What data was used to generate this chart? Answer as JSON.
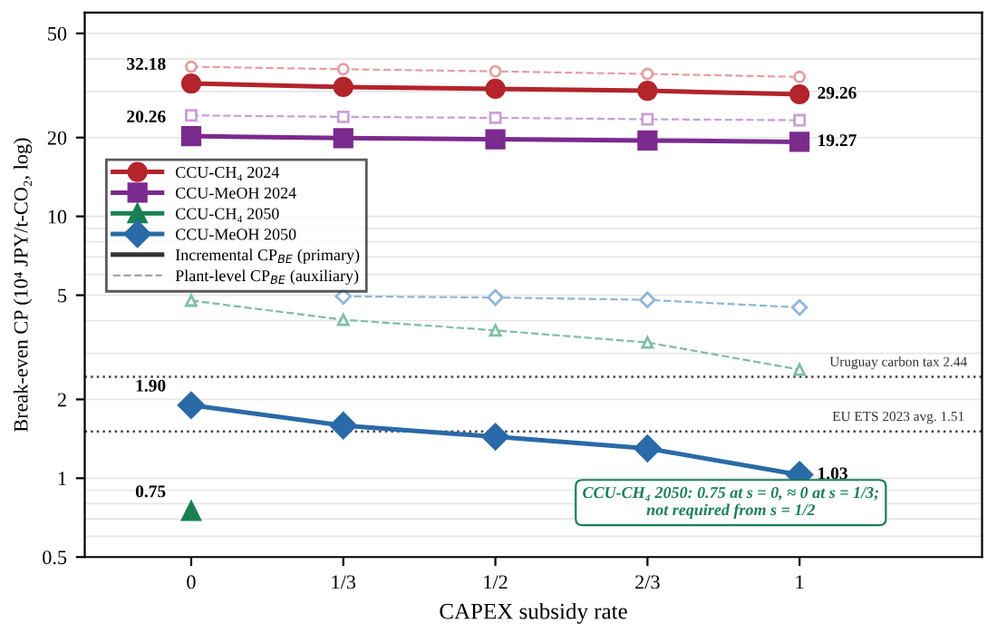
{
  "chart_data": {
    "type": "line",
    "xlabel": "CAPEX subsidy rate",
    "ylabel": "Break-even CP (10⁴ JPY/t-CO₂, log)",
    "categories": [
      "0",
      "1/3",
      "1/2",
      "2/3",
      "1"
    ],
    "log": "y",
    "ylim": [
      0.5,
      60
    ],
    "yticks": [
      0.5,
      1,
      2,
      5,
      10,
      20,
      50
    ],
    "grid": "y",
    "legend": "top left",
    "series": [
      {
        "name": "CCU-CH₄ 2024",
        "color": "#b3242b",
        "marker": "circle",
        "line_style": "solid",
        "values": [
          32.18,
          31.2,
          30.7,
          30.2,
          29.26
        ],
        "value_labels": [
          "32.18",
          null,
          null,
          null,
          "29.26"
        ]
      },
      {
        "name": "CCU-MeOH 2024",
        "color": "#7b2a8e",
        "marker": "square",
        "line_style": "solid",
        "values": [
          20.26,
          19.9,
          19.7,
          19.5,
          19.27
        ],
        "value_labels": [
          "20.26",
          null,
          null,
          null,
          "19.27"
        ]
      },
      {
        "name": "CCU-CH₄ 2050",
        "color": "#1b7f55",
        "marker": "triangle",
        "line_style": "solid",
        "values": [
          0.75,
          null,
          null,
          null,
          null
        ],
        "value_labels": [
          "0.75",
          null,
          null,
          null,
          null
        ]
      },
      {
        "name": "CCU-MeOH 2050",
        "color": "#2a6aa8",
        "marker": "diamond",
        "line_style": "solid",
        "values": [
          1.9,
          1.59,
          1.44,
          1.3,
          1.03
        ],
        "value_labels": [
          "1.90",
          null,
          null,
          null,
          "1.03"
        ]
      },
      {
        "color": "#e3a0a3",
        "marker": "circle",
        "line_style": "dashed",
        "values": [
          37.3,
          36.5,
          35.8,
          35.0,
          34.1
        ]
      },
      {
        "color": "#c9a0d6",
        "marker": "square",
        "line_style": "dashed",
        "values": [
          24.3,
          24.0,
          23.8,
          23.5,
          23.3
        ]
      },
      {
        "color": "#7fbfa0",
        "marker": "triangle",
        "line_style": "dashed",
        "values": [
          4.77,
          4.03,
          3.67,
          3.3,
          2.6
        ]
      },
      {
        "color": "#8fb6da",
        "marker": "diamond",
        "line_style": "dashed",
        "values": [
          null,
          4.95,
          4.9,
          4.8,
          4.49
        ]
      }
    ],
    "ref_lines": [
      {
        "axis": "y",
        "value": 2.44,
        "label": "Uruguay carbon tax 2.44",
        "color": "#444444",
        "line_style": "dotted"
      },
      {
        "axis": "y",
        "value": 1.51,
        "label": "EU ETS 2023 avg. 1.51",
        "color": "#444444",
        "line_style": "dotted"
      }
    ],
    "annotations": [
      "Incremental CP$_{BE}$ (primary)",
      "Plant-level CP$_{BE}$ (auxiliary)",
      "CCU-CH₄ 2050: 0.75 at s = 0, ≈ 0 at s = 1/3;\nnot required from s = 1/2"
    ]
  }
}
